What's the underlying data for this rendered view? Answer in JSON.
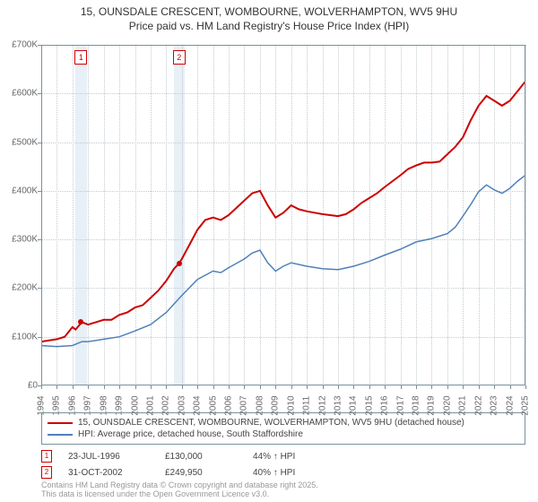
{
  "title_line1": "15, OUNSDALE CRESCENT, WOMBOURNE, WOLVERHAMPTON, WV5 9HU",
  "title_line2": "Price paid vs. HM Land Registry's House Price Index (HPI)",
  "chart": {
    "type": "line",
    "background_color": "#ffffff",
    "grid_color": "#c2cbd1",
    "border_color": "#7a919b",
    "ylim": [
      0,
      700000
    ],
    "ytick_step": 100000,
    "yticks": [
      "£0",
      "£100K",
      "£200K",
      "£300K",
      "£400K",
      "£500K",
      "£600K",
      "£700K"
    ],
    "xlim": [
      1994,
      2025
    ],
    "xticks": [
      1994,
      1995,
      1996,
      1997,
      1998,
      1999,
      2000,
      2001,
      2002,
      2003,
      2004,
      2005,
      2006,
      2007,
      2008,
      2009,
      2010,
      2011,
      2012,
      2013,
      2014,
      2015,
      2016,
      2017,
      2018,
      2019,
      2020,
      2021,
      2022,
      2023,
      2024,
      2025
    ],
    "band_color": "#e7eff7",
    "series": [
      {
        "name": "property",
        "color": "#cc0000",
        "width": 2,
        "data": [
          [
            1994,
            90000
          ],
          [
            1995,
            95000
          ],
          [
            1995.5,
            100000
          ],
          [
            1996,
            120000
          ],
          [
            1996.2,
            115000
          ],
          [
            1996.6,
            130000
          ],
          [
            1997,
            125000
          ],
          [
            1997.5,
            130000
          ],
          [
            1998,
            135000
          ],
          [
            1998.5,
            135000
          ],
          [
            1999,
            145000
          ],
          [
            1999.5,
            150000
          ],
          [
            2000,
            160000
          ],
          [
            2000.5,
            165000
          ],
          [
            2001,
            180000
          ],
          [
            2001.5,
            195000
          ],
          [
            2002,
            215000
          ],
          [
            2002.5,
            240000
          ],
          [
            2002.8,
            249950
          ],
          [
            2003,
            260000
          ],
          [
            2003.5,
            290000
          ],
          [
            2004,
            320000
          ],
          [
            2004.5,
            340000
          ],
          [
            2005,
            345000
          ],
          [
            2005.5,
            340000
          ],
          [
            2006,
            350000
          ],
          [
            2006.5,
            365000
          ],
          [
            2007,
            380000
          ],
          [
            2007.5,
            395000
          ],
          [
            2008,
            400000
          ],
          [
            2008.5,
            370000
          ],
          [
            2009,
            345000
          ],
          [
            2009.5,
            355000
          ],
          [
            2010,
            370000
          ],
          [
            2010.5,
            362000
          ],
          [
            2011,
            358000
          ],
          [
            2011.5,
            355000
          ],
          [
            2012,
            352000
          ],
          [
            2012.5,
            350000
          ],
          [
            2013,
            348000
          ],
          [
            2013.5,
            352000
          ],
          [
            2014,
            362000
          ],
          [
            2014.5,
            375000
          ],
          [
            2015,
            385000
          ],
          [
            2015.5,
            395000
          ],
          [
            2016,
            408000
          ],
          [
            2016.5,
            420000
          ],
          [
            2017,
            432000
          ],
          [
            2017.5,
            445000
          ],
          [
            2018,
            452000
          ],
          [
            2018.5,
            458000
          ],
          [
            2019,
            458000
          ],
          [
            2019.5,
            460000
          ],
          [
            2020,
            475000
          ],
          [
            2020.5,
            490000
          ],
          [
            2021,
            510000
          ],
          [
            2021.5,
            545000
          ],
          [
            2022,
            575000
          ],
          [
            2022.5,
            595000
          ],
          [
            2023,
            585000
          ],
          [
            2023.5,
            575000
          ],
          [
            2024,
            585000
          ],
          [
            2024.5,
            605000
          ],
          [
            2025,
            625000
          ]
        ]
      },
      {
        "name": "hpi",
        "color": "#5081b9",
        "width": 1.5,
        "data": [
          [
            1994,
            82000
          ],
          [
            1995,
            80000
          ],
          [
            1996,
            82000
          ],
          [
            1996.6,
            90000
          ],
          [
            1997,
            90000
          ],
          [
            1998,
            95000
          ],
          [
            1999,
            100000
          ],
          [
            2000,
            112000
          ],
          [
            2001,
            125000
          ],
          [
            2002,
            150000
          ],
          [
            2002.8,
            178000
          ],
          [
            2003,
            185000
          ],
          [
            2004,
            218000
          ],
          [
            2005,
            235000
          ],
          [
            2005.5,
            232000
          ],
          [
            2006,
            242000
          ],
          [
            2007,
            260000
          ],
          [
            2007.5,
            272000
          ],
          [
            2008,
            278000
          ],
          [
            2008.5,
            252000
          ],
          [
            2009,
            235000
          ],
          [
            2009.5,
            245000
          ],
          [
            2010,
            252000
          ],
          [
            2011,
            245000
          ],
          [
            2012,
            240000
          ],
          [
            2013,
            238000
          ],
          [
            2014,
            245000
          ],
          [
            2015,
            255000
          ],
          [
            2016,
            268000
          ],
          [
            2017,
            280000
          ],
          [
            2018,
            295000
          ],
          [
            2019,
            302000
          ],
          [
            2020,
            312000
          ],
          [
            2020.5,
            325000
          ],
          [
            2021,
            348000
          ],
          [
            2021.5,
            372000
          ],
          [
            2022,
            398000
          ],
          [
            2022.5,
            412000
          ],
          [
            2023,
            402000
          ],
          [
            2023.5,
            395000
          ],
          [
            2024,
            405000
          ],
          [
            2024.5,
            420000
          ],
          [
            2025,
            432000
          ]
        ]
      }
    ],
    "sale_markers": [
      {
        "num": "1",
        "year": 1996.55,
        "price": 130000
      },
      {
        "num": "2",
        "year": 2002.83,
        "price": 249950
      }
    ]
  },
  "legend": {
    "items": [
      {
        "color": "#cc0000",
        "label": "15, OUNSDALE CRESCENT, WOMBOURNE, WOLVERHAMPTON, WV5 9HU (detached house)"
      },
      {
        "color": "#5081b9",
        "label": "HPI: Average price, detached house, South Staffordshire"
      }
    ]
  },
  "footer": {
    "rows": [
      {
        "num": "1",
        "date": "23-JUL-1996",
        "price": "£130,000",
        "pct": "44% ↑ HPI"
      },
      {
        "num": "2",
        "date": "31-OCT-2002",
        "price": "£249,950",
        "pct": "40% ↑ HPI"
      }
    ]
  },
  "attribution_line1": "Contains HM Land Registry data © Crown copyright and database right 2025.",
  "attribution_line2": "This data is licensed under the Open Government Licence v3.0."
}
